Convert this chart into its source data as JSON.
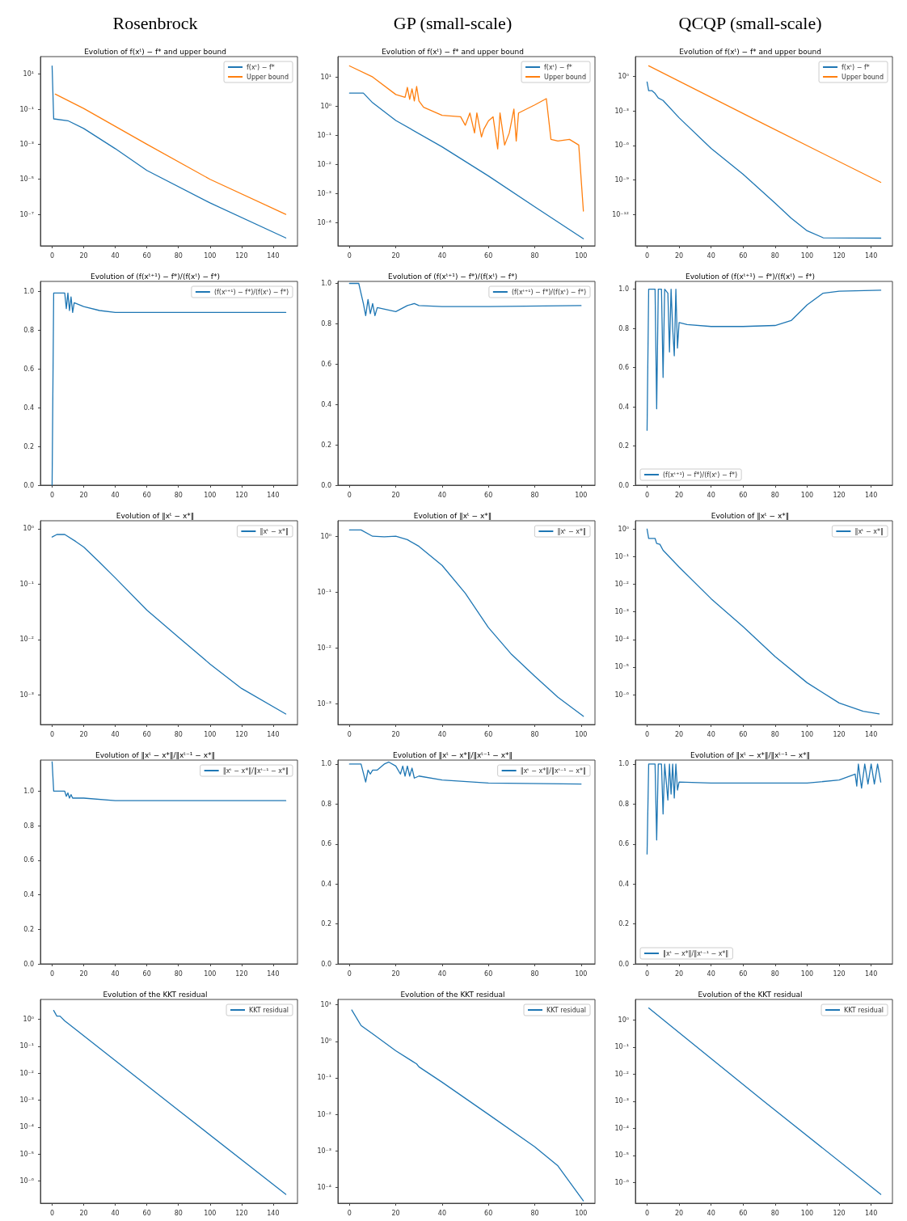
{
  "chart_data": [
    {
      "type": "line",
      "subtitle": "Rosenbrock",
      "title": "Evolution of f(xᵗ) − f* and upper bound",
      "legend": "top right",
      "log": true,
      "xlim": [
        -7.4,
        155.4
      ],
      "xticks": [
        0,
        20,
        40,
        60,
        80,
        100,
        120,
        140
      ],
      "ylim": [
        1.6e-09,
        100
      ],
      "yticks": [
        {
          "value": 10,
          "label": "10¹"
        },
        {
          "value": 0.1,
          "label": "10⁻¹"
        },
        {
          "value": 0.001,
          "label": "10⁻³"
        },
        {
          "value": 1e-05,
          "label": "10⁻⁵"
        },
        {
          "value": 1e-07,
          "label": "10⁻⁷"
        }
      ],
      "series": [
        {
          "name": "f(xᵗ) − f*",
          "color": "#1f77b4",
          "x": [
            0,
            1,
            10,
            20,
            40,
            60,
            100,
            148
          ],
          "values": [
            29,
            0.028,
            0.022,
            0.0079,
            0.00056,
            3.2e-05,
            4.5e-07,
            4.5e-09
          ]
        },
        {
          "name": "Upper bound",
          "color": "#ff7f0e",
          "x": [
            2,
            20,
            60,
            100,
            148
          ],
          "values": [
            0.72,
            0.11,
            0.001,
            1e-05,
            1e-07
          ]
        }
      ]
    },
    {
      "type": "line",
      "subtitle": "GP (small-scale)",
      "title": "Evolution of f(xᵗ) − f* and upper bound",
      "legend": "top right",
      "log": true,
      "xlim": [
        -5,
        106
      ],
      "xticks": [
        0,
        20,
        40,
        60,
        80,
        100
      ],
      "ylim": [
        1.6e-05,
        50
      ],
      "yticks": [
        {
          "value": 10,
          "label": "10¹"
        },
        {
          "value": 1,
          "label": "10⁰"
        },
        {
          "value": 0.1,
          "label": "10⁻¹"
        },
        {
          "value": 0.01,
          "label": "10⁻²"
        },
        {
          "value": 0.001,
          "label": "10⁻³"
        },
        {
          "value": 0.0001,
          "label": "10⁻⁴"
        }
      ],
      "series": [
        {
          "name": "f(xᵗ) − f*",
          "color": "#1f77b4",
          "x": [
            0,
            6,
            10,
            20,
            40,
            60,
            80,
            101
          ],
          "values": [
            2.8,
            2.8,
            1.3,
            0.32,
            0.04,
            0.004,
            0.00035,
            2.8e-05
          ]
        },
        {
          "name": "Upper bound",
          "color": "#ff7f0e",
          "x": [
            0,
            10,
            20,
            24,
            25,
            26,
            27,
            28,
            29,
            30,
            32,
            40,
            48,
            50,
            52,
            54,
            55,
            57,
            58,
            60,
            62,
            64,
            65,
            67,
            69,
            71,
            72,
            73,
            80,
            85,
            87,
            90,
            95,
            99,
            101
          ],
          "values": [
            24,
            10,
            2.5,
            2.0,
            4.4,
            1.7,
            3.9,
            1.5,
            4.7,
            1.5,
            0.91,
            0.48,
            0.43,
            0.22,
            0.58,
            0.12,
            0.58,
            0.087,
            0.16,
            0.31,
            0.43,
            0.034,
            0.58,
            0.046,
            0.12,
            0.79,
            0.063,
            0.58,
            1.1,
            1.8,
            0.072,
            0.063,
            0.072,
            0.046,
            0.00025
          ]
        }
      ]
    },
    {
      "type": "line",
      "subtitle": "QCQP (small-scale)",
      "title": "Evolution of f(xᵗ) − f* and upper bound",
      "legend": "top right",
      "log": true,
      "xlim": [
        -7.3,
        153.3
      ],
      "xticks": [
        0,
        20,
        40,
        60,
        80,
        100,
        120,
        140
      ],
      "ylim": [
        2e-15,
        50
      ],
      "yticks": [
        {
          "value": 1,
          "label": "10⁰"
        },
        {
          "value": 0.001,
          "label": "10⁻³"
        },
        {
          "value": 1e-06,
          "label": "10⁻⁶"
        },
        {
          "value": 1e-09,
          "label": "10⁻⁹"
        },
        {
          "value": 1e-12,
          "label": "10⁻¹²"
        }
      ],
      "series": [
        {
          "name": "f(xᵗ) − f*",
          "color": "#1f77b4",
          "x": [
            0,
            1,
            3,
            5,
            7,
            10,
            20,
            40,
            60,
            80,
            90,
            100,
            110,
            146
          ],
          "values": [
            0.32,
            0.056,
            0.056,
            0.032,
            0.013,
            0.0079,
            0.00025,
            5.6e-07,
            3.2e-09,
            1e-11,
            5e-13,
            4e-14,
            1e-14,
            9.3e-15
          ]
        },
        {
          "name": "Upper bound",
          "color": "#ff7f0e",
          "x": [
            1,
            73,
            146
          ],
          "values": [
            7.9,
            7.1e-05,
            6.3e-10
          ]
        }
      ]
    },
    {
      "type": "line",
      "title": "Evolution of (f(xᵗ⁺¹) − f*)/(f(xᵗ) − f*)",
      "legend": "top right",
      "xlim": [
        -7.4,
        155.4
      ],
      "xticks": [
        0,
        20,
        40,
        60,
        80,
        100,
        120,
        140
      ],
      "ylim": [
        0,
        1.05
      ],
      "yticks": [
        {
          "value": 0,
          "label": "0.0"
        },
        {
          "value": 0.2,
          "label": "0.2"
        },
        {
          "value": 0.4,
          "label": "0.4"
        },
        {
          "value": 0.6,
          "label": "0.6"
        },
        {
          "value": 0.8,
          "label": "0.8"
        },
        {
          "value": 1,
          "label": "1.0"
        }
      ],
      "series": [
        {
          "name": "(f(xᵗ⁺¹) − f*)/(f(xᵗ) − f*)",
          "color": "#1f77b4",
          "x": [
            0,
            1,
            5,
            8,
            9,
            10,
            11,
            12,
            13,
            14,
            20,
            30,
            40,
            148
          ],
          "values": [
            0,
            0.99,
            0.99,
            0.99,
            0.91,
            0.99,
            0.9,
            0.97,
            0.89,
            0.94,
            0.92,
            0.9,
            0.89,
            0.89
          ]
        }
      ]
    },
    {
      "type": "line",
      "title": "Evolution of (f(xᵗ⁺¹) − f*)/(f(xᵗ) − f*)",
      "legend": "top right",
      "xlim": [
        -5,
        106
      ],
      "xticks": [
        0,
        20,
        40,
        60,
        80,
        100
      ],
      "ylim": [
        0,
        1.01
      ],
      "yticks": [
        {
          "value": 0,
          "label": "0.0"
        },
        {
          "value": 0.2,
          "label": "0.2"
        },
        {
          "value": 0.4,
          "label": "0.4"
        },
        {
          "value": 0.6,
          "label": "0.6"
        },
        {
          "value": 0.8,
          "label": "0.8"
        },
        {
          "value": 1,
          "label": "1.0"
        }
      ],
      "series": [
        {
          "name": "(f(xᵗ⁺¹) − f*)/(f(xᵗ) − f*)",
          "color": "#1f77b4",
          "x": [
            0,
            4,
            6,
            7,
            8,
            9,
            10,
            11,
            12,
            20,
            25,
            28,
            30,
            40,
            60,
            100
          ],
          "values": [
            1,
            1,
            0.9,
            0.84,
            0.92,
            0.85,
            0.9,
            0.84,
            0.88,
            0.86,
            0.89,
            0.9,
            0.89,
            0.885,
            0.885,
            0.89
          ]
        }
      ]
    },
    {
      "type": "line",
      "title": "Evolution of (f(xᵗ⁺¹) − f*)/(f(xᵗ) − f*)",
      "legend": "bottom left",
      "xlim": [
        -7.3,
        153.3
      ],
      "xticks": [
        0,
        20,
        40,
        60,
        80,
        100,
        120,
        140
      ],
      "ylim": [
        0,
        1.04
      ],
      "yticks": [
        {
          "value": 0,
          "label": "0.0"
        },
        {
          "value": 0.2,
          "label": "0.2"
        },
        {
          "value": 0.4,
          "label": "0.4"
        },
        {
          "value": 0.6,
          "label": "0.6"
        },
        {
          "value": 0.8,
          "label": "0.8"
        },
        {
          "value": 1,
          "label": "1.0"
        }
      ],
      "series": [
        {
          "name": "(f(xᵗ⁺¹) − f*)/(f(xᵗ) − f*)",
          "color": "#1f77b4",
          "x": [
            0,
            1,
            5,
            6,
            7,
            9,
            10,
            11,
            13,
            14,
            15,
            16,
            17,
            18,
            19,
            20,
            25,
            40,
            60,
            80,
            90,
            100,
            110,
            120,
            146
          ],
          "values": [
            0.28,
            1,
            1,
            0.39,
            1,
            1,
            0.55,
            1,
            0.98,
            0.68,
            1,
            0.8,
            0.66,
            1,
            0.7,
            0.83,
            0.82,
            0.81,
            0.81,
            0.815,
            0.84,
            0.92,
            0.98,
            0.99,
            0.995
          ]
        }
      ]
    },
    {
      "type": "line",
      "title": "Evolution of ‖xᵗ − x*‖",
      "legend": "top right",
      "log": true,
      "xlim": [
        -7.4,
        155.4
      ],
      "xticks": [
        0,
        20,
        40,
        60,
        80,
        100,
        120,
        140
      ],
      "ylim": [
        0.00029,
        1.4
      ],
      "yticks": [
        {
          "value": 1,
          "label": "10⁰"
        },
        {
          "value": 0.1,
          "label": "10⁻¹"
        },
        {
          "value": 0.01,
          "label": "10⁻²"
        },
        {
          "value": 0.001,
          "label": "10⁻³"
        }
      ],
      "series": [
        {
          "name": "‖xᵗ − x*‖",
          "color": "#1f77b4",
          "x": [
            0,
            3,
            8,
            15,
            20,
            30,
            40,
            60,
            80,
            100,
            120,
            148
          ],
          "values": [
            0.71,
            0.79,
            0.79,
            0.59,
            0.47,
            0.25,
            0.13,
            0.034,
            0.011,
            0.0036,
            0.0013,
            0.00045
          ]
        }
      ]
    },
    {
      "type": "line",
      "title": "Evolution of ‖xᵗ − x*‖",
      "legend": "top right",
      "log": true,
      "xlim": [
        -5,
        106
      ],
      "xticks": [
        0,
        20,
        40,
        60,
        80,
        100
      ],
      "ylim": [
        0.00042,
        1.9
      ],
      "yticks": [
        {
          "value": 1,
          "label": "10⁰"
        },
        {
          "value": 0.1,
          "label": "10⁻¹"
        },
        {
          "value": 0.01,
          "label": "10⁻²"
        },
        {
          "value": 0.001,
          "label": "10⁻³"
        }
      ],
      "series": [
        {
          "name": "‖xᵗ − x*‖",
          "color": "#1f77b4",
          "x": [
            0,
            5,
            10,
            15,
            20,
            25,
            30,
            40,
            50,
            60,
            70,
            80,
            90,
            101
          ],
          "values": [
            1.3,
            1.3,
            1.0,
            0.98,
            1.0,
            0.87,
            0.66,
            0.3,
            0.095,
            0.023,
            0.0076,
            0.0031,
            0.0013,
            0.00059
          ]
        }
      ]
    },
    {
      "type": "line",
      "title": "Evolution of ‖xᵗ − x*‖",
      "legend": "top right",
      "log": true,
      "xlim": [
        -7.3,
        153.3
      ],
      "xticks": [
        0,
        20,
        40,
        60,
        80,
        100,
        120,
        140
      ],
      "ylim": [
        8.3e-08,
        2
      ],
      "yticks": [
        {
          "value": 1,
          "label": "10⁰"
        },
        {
          "value": 0.1,
          "label": "10⁻¹"
        },
        {
          "value": 0.01,
          "label": "10⁻²"
        },
        {
          "value": 0.001,
          "label": "10⁻³"
        },
        {
          "value": 0.0001,
          "label": "10⁻⁴"
        },
        {
          "value": 1e-05,
          "label": "10⁻⁵"
        },
        {
          "value": 1e-06,
          "label": "10⁻⁶"
        }
      ],
      "series": [
        {
          "name": "‖xᵗ − x*‖",
          "color": "#1f77b4",
          "x": [
            0,
            1,
            5,
            6,
            8,
            10,
            20,
            40,
            60,
            80,
            100,
            120,
            135,
            145
          ],
          "values": [
            1.0,
            0.46,
            0.46,
            0.3,
            0.28,
            0.17,
            0.042,
            0.003,
            0.00029,
            2.4e-05,
            2.7e-06,
            5e-07,
            2.5e-07,
            2e-07
          ]
        }
      ]
    },
    {
      "type": "line",
      "title": "Evolution of ‖xᵗ − x*‖/‖xᵗ⁻¹ − x*‖",
      "legend": "top right",
      "xlim": [
        -7.4,
        155.4
      ],
      "xticks": [
        0,
        20,
        40,
        60,
        80,
        100,
        120,
        140
      ],
      "ylim": [
        0,
        1.18
      ],
      "yticks": [
        {
          "value": 0,
          "label": "0.0"
        },
        {
          "value": 0.2,
          "label": "0.2"
        },
        {
          "value": 0.4,
          "label": "0.4"
        },
        {
          "value": 0.6,
          "label": "0.6"
        },
        {
          "value": 0.8,
          "label": "0.8"
        },
        {
          "value": 1,
          "label": "1.0"
        }
      ],
      "series": [
        {
          "name": "‖xᵗ − x*‖/‖xᵗ⁻¹ − x*‖",
          "color": "#1f77b4",
          "x": [
            0,
            1,
            8,
            9,
            10,
            11,
            12,
            13,
            20,
            40,
            148
          ],
          "values": [
            1.17,
            1,
            1,
            0.97,
            0.99,
            0.96,
            0.98,
            0.96,
            0.96,
            0.945,
            0.945
          ]
        }
      ]
    },
    {
      "type": "line",
      "title": "Evolution of ‖xᵗ − x*‖/‖xᵗ⁻¹ − x*‖",
      "legend": "top right",
      "xlim": [
        -5,
        106
      ],
      "xticks": [
        0,
        20,
        40,
        60,
        80,
        100
      ],
      "ylim": [
        0,
        1.02
      ],
      "yticks": [
        {
          "value": 0,
          "label": "0.0"
        },
        {
          "value": 0.2,
          "label": "0.2"
        },
        {
          "value": 0.4,
          "label": "0.4"
        },
        {
          "value": 0.6,
          "label": "0.6"
        },
        {
          "value": 0.8,
          "label": "0.8"
        },
        {
          "value": 1,
          "label": "1.0"
        }
      ],
      "series": [
        {
          "name": "‖xᵗ − x*‖/‖xᵗ⁻¹ − x*‖",
          "color": "#1f77b4",
          "x": [
            0,
            5,
            7,
            8,
            9,
            10,
            12,
            15,
            17,
            20,
            22,
            23,
            24,
            25,
            26,
            27,
            28,
            30,
            40,
            60,
            100
          ],
          "values": [
            1,
            1,
            0.91,
            0.97,
            0.95,
            0.97,
            0.97,
            1,
            1.01,
            0.99,
            0.95,
            0.99,
            0.94,
            0.99,
            0.94,
            0.98,
            0.93,
            0.94,
            0.92,
            0.905,
            0.9
          ]
        }
      ]
    },
    {
      "type": "line",
      "title": "Evolution of ‖xᵗ − x*‖/‖xᵗ⁻¹ − x*‖",
      "legend": "bottom left",
      "xlim": [
        -7.3,
        153.3
      ],
      "xticks": [
        0,
        20,
        40,
        60,
        80,
        100,
        120,
        140
      ],
      "ylim": [
        0,
        1.02
      ],
      "yticks": [
        {
          "value": 0,
          "label": "0.0"
        },
        {
          "value": 0.2,
          "label": "0.2"
        },
        {
          "value": 0.4,
          "label": "0.4"
        },
        {
          "value": 0.6,
          "label": "0.6"
        },
        {
          "value": 0.8,
          "label": "0.8"
        },
        {
          "value": 1,
          "label": "1.0"
        }
      ],
      "series": [
        {
          "name": "‖xᵗ − x*‖/‖xᵗ⁻¹ − x*‖",
          "color": "#1f77b4",
          "x": [
            0,
            1,
            5,
            6,
            7,
            9,
            10,
            11,
            13,
            14,
            15,
            16,
            17,
            18,
            19,
            20,
            40,
            100,
            120,
            130,
            131,
            132,
            134,
            136,
            138,
            140,
            142,
            144,
            146
          ],
          "values": [
            0.55,
            1,
            1,
            0.62,
            1,
            1,
            0.75,
            1,
            0.82,
            1,
            0.85,
            1,
            0.83,
            1,
            0.87,
            0.91,
            0.905,
            0.905,
            0.92,
            0.95,
            0.89,
            1,
            0.88,
            1,
            0.9,
            1,
            0.9,
            1,
            0.91
          ]
        }
      ]
    },
    {
      "type": "line",
      "title": "Evolution of the KKT residual",
      "legend": "top right",
      "log": true,
      "xlim": [
        -7.4,
        155.4
      ],
      "xticks": [
        0,
        20,
        40,
        60,
        80,
        100,
        120,
        140
      ],
      "ylim": [
        1.5e-07,
        5.4
      ],
      "yticks": [
        {
          "value": 1,
          "label": "10⁰"
        },
        {
          "value": 0.1,
          "label": "10⁻¹"
        },
        {
          "value": 0.01,
          "label": "10⁻²"
        },
        {
          "value": 0.001,
          "label": "10⁻³"
        },
        {
          "value": 0.0001,
          "label": "10⁻⁴"
        },
        {
          "value": 1e-05,
          "label": "10⁻⁵"
        },
        {
          "value": 1e-06,
          "label": "10⁻⁶"
        }
      ],
      "series": [
        {
          "name": "KKT residual",
          "color": "#1f77b4",
          "x": [
            1,
            3,
            5,
            8,
            78,
            148
          ],
          "values": [
            2.1,
            1.3,
            1.3,
            0.87,
            0.00052,
            3.2e-07
          ]
        }
      ]
    },
    {
      "type": "line",
      "title": "Evolution of the KKT residual",
      "legend": "top right",
      "log": true,
      "xlim": [
        -5,
        106
      ],
      "xticks": [
        0,
        20,
        40,
        60,
        80,
        100
      ],
      "ylim": [
        3.7e-05,
        14
      ],
      "yticks": [
        {
          "value": 10,
          "label": "10¹"
        },
        {
          "value": 1,
          "label": "10⁰"
        },
        {
          "value": 0.1,
          "label": "10⁻¹"
        },
        {
          "value": 0.01,
          "label": "10⁻²"
        },
        {
          "value": 0.001,
          "label": "10⁻³"
        },
        {
          "value": 0.0001,
          "label": "10⁻⁴"
        }
      ],
      "series": [
        {
          "name": "KKT residual",
          "color": "#1f77b4",
          "x": [
            1,
            5,
            10,
            20,
            29,
            30,
            40,
            60,
            80,
            90,
            101
          ],
          "values": [
            7.2,
            2.7,
            1.6,
            0.55,
            0.24,
            0.2,
            0.076,
            0.01,
            0.0013,
            0.00039,
            4.3e-05
          ]
        }
      ]
    },
    {
      "type": "line",
      "title": "Evolution of the KKT residual",
      "legend": "top right",
      "log": true,
      "xlim": [
        -7.3,
        153.3
      ],
      "xticks": [
        0,
        20,
        40,
        60,
        80,
        100,
        120,
        140
      ],
      "ylim": [
        1.7e-07,
        5.8
      ],
      "yticks": [
        {
          "value": 1,
          "label": "10⁰"
        },
        {
          "value": 0.1,
          "label": "10⁻¹"
        },
        {
          "value": 0.01,
          "label": "10⁻²"
        },
        {
          "value": 0.001,
          "label": "10⁻³"
        },
        {
          "value": 0.0001,
          "label": "10⁻⁴"
        },
        {
          "value": 1e-05,
          "label": "10⁻⁵"
        },
        {
          "value": 1e-06,
          "label": "10⁻⁶"
        }
      ],
      "series": [
        {
          "name": "KKT residual",
          "color": "#1f77b4",
          "x": [
            1,
            73,
            146
          ],
          "values": [
            2.8,
            0.001,
            3.6e-07
          ]
        }
      ]
    }
  ]
}
